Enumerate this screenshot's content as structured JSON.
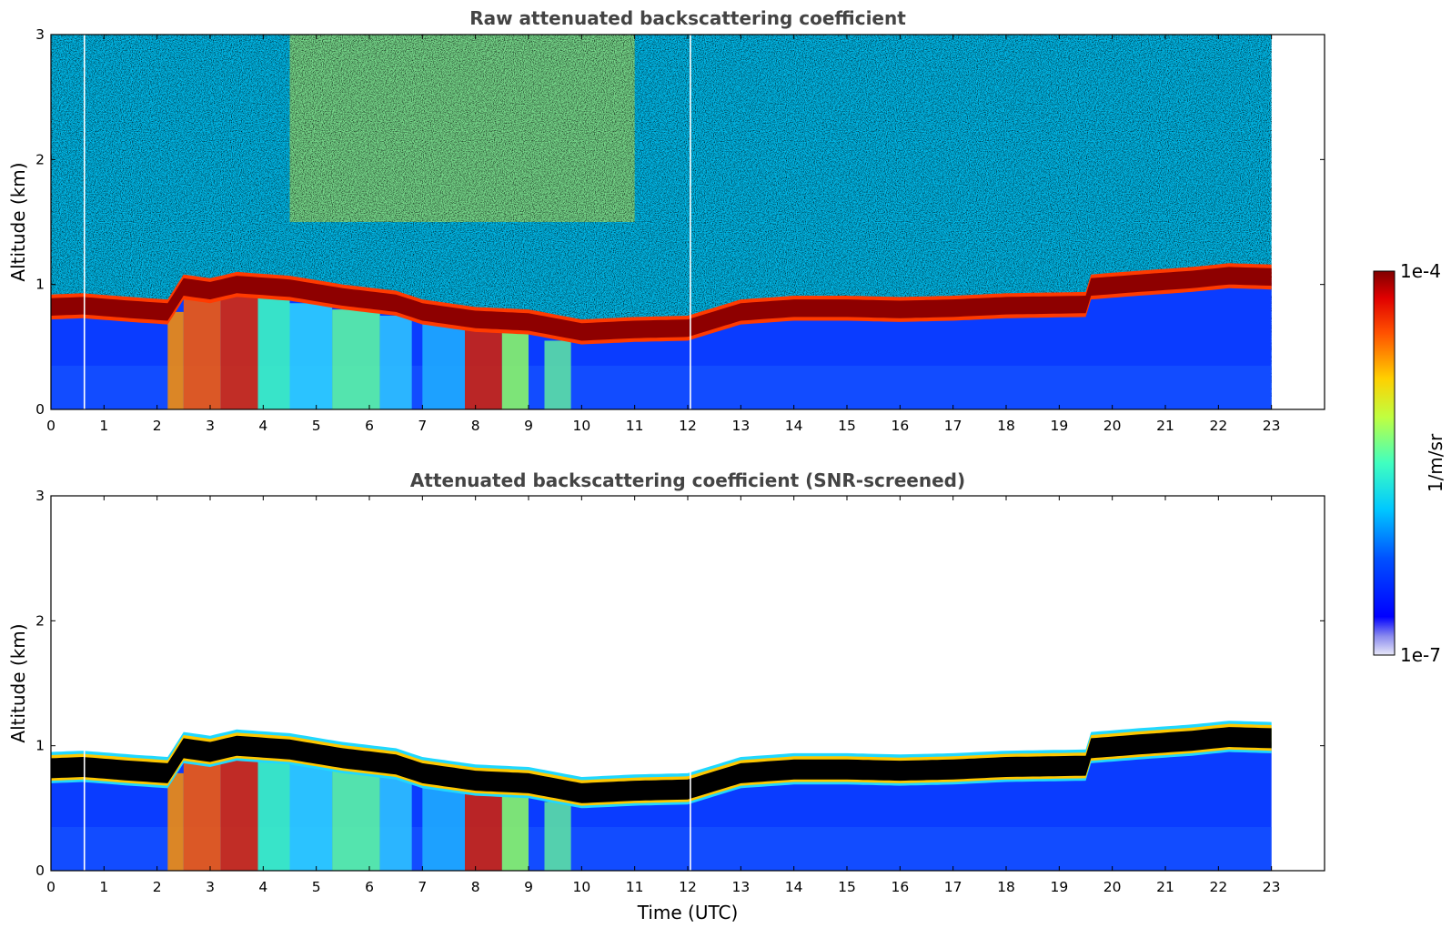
{
  "chart_data": [
    {
      "type": "heatmap",
      "title": "Raw attenuated backscattering coefficient",
      "xlabel": "",
      "ylabel": "Altitude (km)",
      "xlim": [
        0,
        24
      ],
      "ylim": [
        0,
        3
      ],
      "x_ticks": [
        "0",
        "1",
        "2",
        "3",
        "4",
        "5",
        "6",
        "7",
        "8",
        "9",
        "10",
        "11",
        "12",
        "13",
        "14",
        "15",
        "16",
        "17",
        "18",
        "19",
        "20",
        "21",
        "22",
        "23"
      ],
      "y_ticks": [
        "0",
        "1",
        "2",
        "3"
      ],
      "data_time_range": [
        0,
        23
      ],
      "screened": false,
      "background_noise": "high, increasing with altitude, strongest 5-11 UTC",
      "cloud_base_km": [
        {
          "t": 0,
          "z": 0.82
        },
        {
          "t": 0.6,
          "z": 0.83
        },
        {
          "t": 1.5,
          "z": 0.8
        },
        {
          "t": 2.2,
          "z": 0.78
        },
        {
          "t": 2.5,
          "z": 0.98
        },
        {
          "t": 3.0,
          "z": 0.95
        },
        {
          "t": 3.5,
          "z": 1.0
        },
        {
          "t": 4.5,
          "z": 0.97
        },
        {
          "t": 5.5,
          "z": 0.9
        },
        {
          "t": 6.5,
          "z": 0.85
        },
        {
          "t": 7.0,
          "z": 0.78
        },
        {
          "t": 8.0,
          "z": 0.72
        },
        {
          "t": 9.0,
          "z": 0.7
        },
        {
          "t": 10.0,
          "z": 0.62
        },
        {
          "t": 11.0,
          "z": 0.64
        },
        {
          "t": 12.0,
          "z": 0.65
        },
        {
          "t": 13.0,
          "z": 0.78
        },
        {
          "t": 14.0,
          "z": 0.81
        },
        {
          "t": 15.0,
          "z": 0.81
        },
        {
          "t": 16.0,
          "z": 0.8
        },
        {
          "t": 17.0,
          "z": 0.81
        },
        {
          "t": 18.0,
          "z": 0.83
        },
        {
          "t": 19.5,
          "z": 0.84
        },
        {
          "t": 19.6,
          "z": 0.98
        },
        {
          "t": 20.5,
          "z": 1.01
        },
        {
          "t": 21.5,
          "z": 1.04
        },
        {
          "t": 22.2,
          "z": 1.07
        },
        {
          "t": 23.0,
          "z": 1.06
        }
      ],
      "precipitation_periods_utc": [
        [
          2.2,
          4.5
        ],
        [
          4.5,
          6.8
        ],
        [
          7.0,
          8.6
        ],
        [
          9.0,
          10.0
        ]
      ],
      "gaps_utc": [
        0.63,
        12.05
      ]
    },
    {
      "type": "heatmap",
      "title": "Attenuated backscattering coefficient (SNR-screened)",
      "xlabel": "Time (UTC)",
      "ylabel": "Altitude (km)",
      "xlim": [
        0,
        24
      ],
      "ylim": [
        0,
        3
      ],
      "x_ticks": [
        "0",
        "1",
        "2",
        "3",
        "4",
        "5",
        "6",
        "7",
        "8",
        "9",
        "10",
        "11",
        "12",
        "13",
        "14",
        "15",
        "16",
        "17",
        "18",
        "19",
        "20",
        "21",
        "22",
        "23"
      ],
      "y_ticks": [
        "0",
        "1",
        "2",
        "3"
      ],
      "data_time_range": [
        0,
        23
      ],
      "screened": true,
      "cloud_core_color": "#000000",
      "gaps_utc": [
        0.63,
        12.05
      ]
    }
  ],
  "colorbar": {
    "label": "1/m/sr",
    "max_label": "1e-4",
    "min_label": "1e-7",
    "colormap": "jet",
    "scale": "log"
  },
  "colors": {
    "title": "#444444",
    "axes": "#000000",
    "background": "#ffffff"
  }
}
